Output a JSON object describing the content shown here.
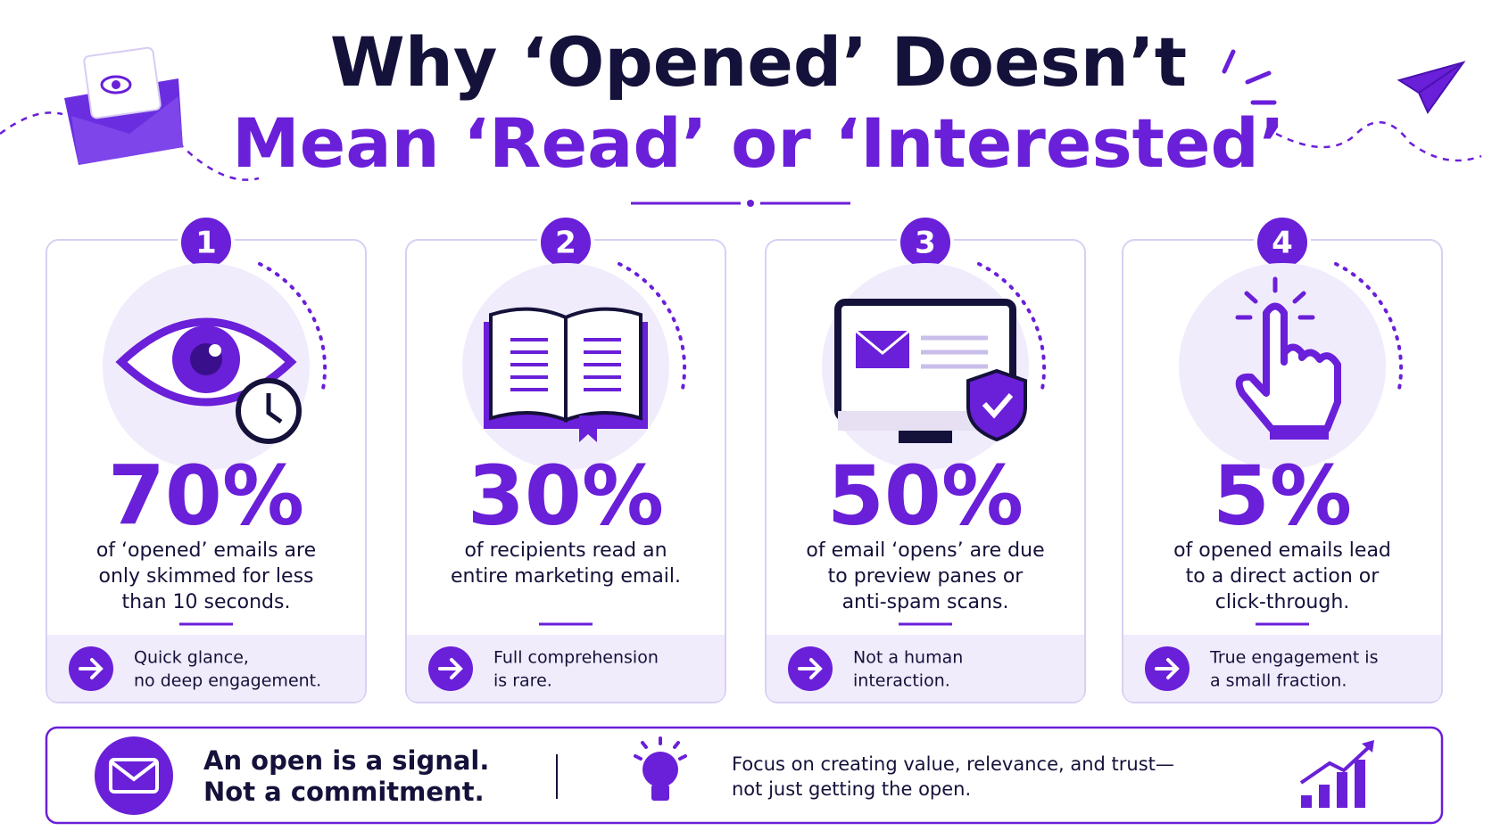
{
  "header": {
    "title_line1": "Why ‘Opened’ Doesn’t",
    "title_line2": "Mean ‘Read’ or ‘Interested’"
  },
  "cards": [
    {
      "number": "1",
      "stat": "70%",
      "description": [
        "of ‘opened’ emails are",
        "only skimmed for less",
        "than 10 seconds."
      ],
      "takeaway": [
        "Quick glance,",
        "no deep engagement."
      ]
    },
    {
      "number": "2",
      "stat": "30%",
      "description": [
        "of recipients read an",
        "entire marketing email."
      ],
      "takeaway": [
        "Full comprehension",
        "is rare."
      ]
    },
    {
      "number": "3",
      "stat": "50%",
      "description": [
        "of email ‘opens’ are due",
        "to preview panes or",
        "anti-spam scans."
      ],
      "takeaway": [
        "Not a human",
        "interaction."
      ]
    },
    {
      "number": "4",
      "stat": "5%",
      "description": [
        "of opened emails lead",
        "to a direct action or",
        "click-through."
      ],
      "takeaway": [
        "True engagement is",
        "a small fraction."
      ]
    }
  ],
  "footer": {
    "headline": [
      "An open is a signal.",
      "Not a commitment."
    ],
    "tip": [
      "Focus on creating value, relevance, and trust—",
      "not just getting the open."
    ]
  }
}
